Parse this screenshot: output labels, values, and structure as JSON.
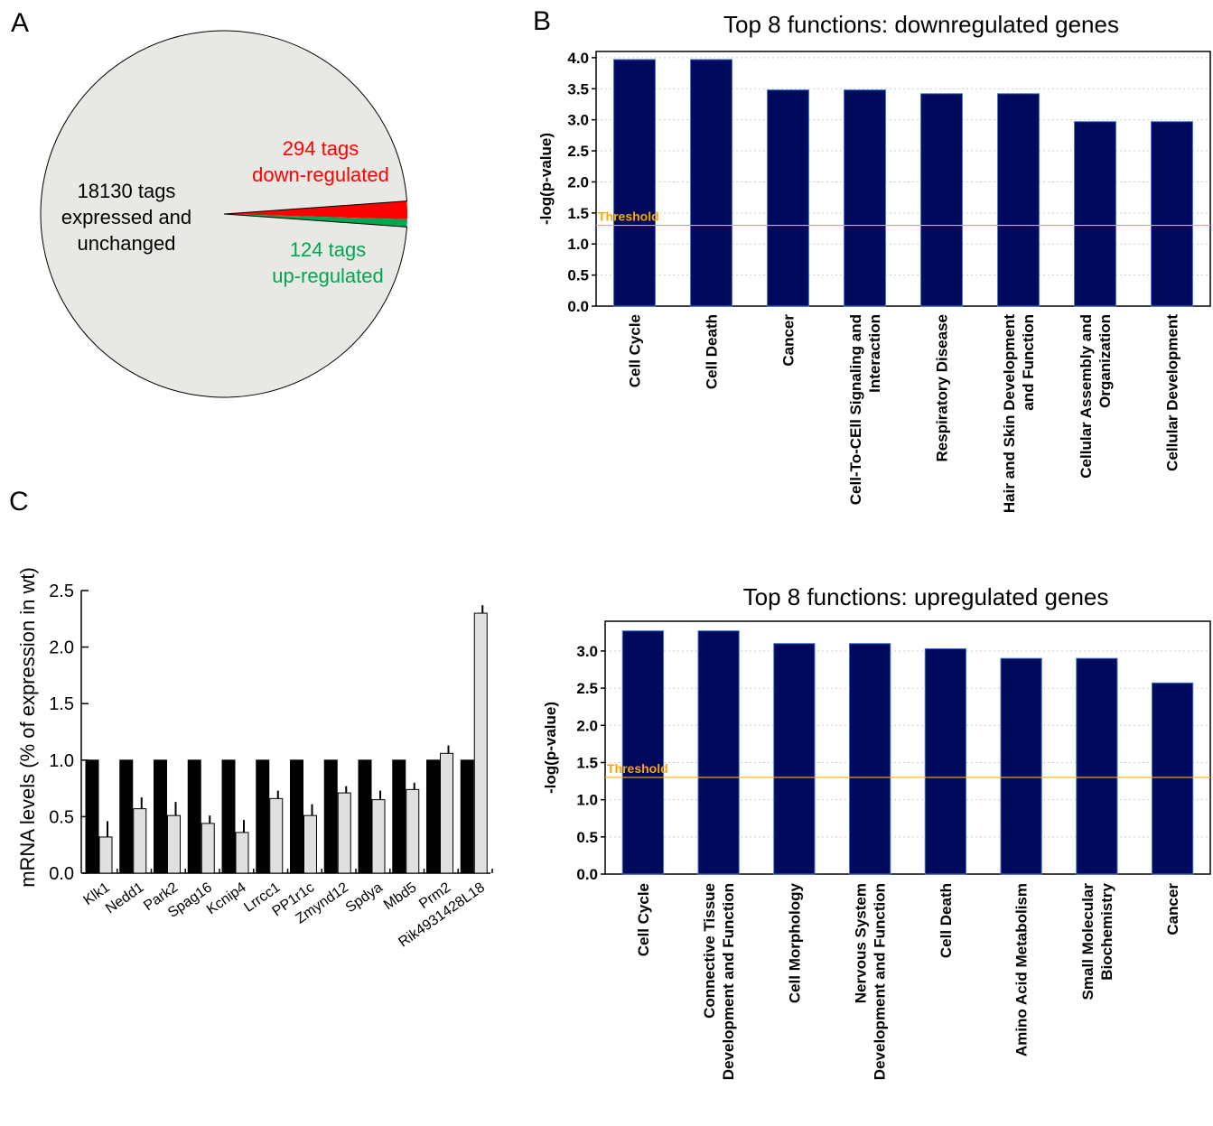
{
  "panel_labels": {
    "a": "A",
    "b": "B",
    "c": "C"
  },
  "chart_data": [
    {
      "panel": "A",
      "type": "pie",
      "labels": [
        "18130 tags expressed and unchanged",
        "294 tags down-regulated",
        "124 tags up-regulated"
      ],
      "values": [
        18130,
        294,
        124
      ],
      "colors": [
        "#E8E8E4",
        "#FF0000",
        "#00A651"
      ],
      "text_colors": [
        "#000000",
        "#FF0000",
        "#00A651"
      ],
      "label_lines": [
        [
          "18130 tags",
          "expressed and",
          "unchanged"
        ],
        [
          "294 tags",
          "down-regulated"
        ],
        [
          "124 tags",
          "up-regulated"
        ]
      ]
    },
    {
      "panel": "B",
      "type": "bar",
      "title": "Top 8 functions: downregulated genes",
      "ylabel": "-log(p-value)",
      "ylim": [
        0,
        4.1
      ],
      "yticks": [
        "0.0",
        "0.5",
        "1.0",
        "1.5",
        "2.0",
        "2.5",
        "3.0",
        "3.5",
        "4.0"
      ],
      "threshold_label": "Threshold",
      "threshold": 1.3,
      "bar_color": "#000A5C",
      "categories": [
        [
          "Cell Cycle"
        ],
        [
          "Cell Death"
        ],
        [
          "Cancer"
        ],
        [
          "Cell-To-CEll Signaling and",
          "Interaction"
        ],
        [
          "Respiratory Disease"
        ],
        [
          "Hair and Skin Development",
          "and Function"
        ],
        [
          "Cellular Assembly and",
          "Organization"
        ],
        [
          "Cellular Development"
        ]
      ],
      "values": [
        3.97,
        3.97,
        3.48,
        3.48,
        3.42,
        3.42,
        2.97,
        2.97
      ],
      "grid": "horizontal dotted"
    },
    {
      "panel": "B",
      "type": "bar",
      "title": "Top 8 functions: upregulated genes",
      "ylabel": "-log(p-value)",
      "ylim": [
        0,
        3.4
      ],
      "yticks": [
        "0.0",
        "0.5",
        "1.0",
        "1.5",
        "2.0",
        "2.5",
        "3.0"
      ],
      "threshold_label": "Threshold",
      "threshold": 1.3,
      "bar_color": "#000A5C",
      "categories": [
        [
          "Cell Cycle"
        ],
        [
          "Connective Tissue",
          "Development and Function"
        ],
        [
          "Cell Morphology"
        ],
        [
          "Nervous System",
          "Development and Function"
        ],
        [
          "Cell Death"
        ],
        [
          "Amino Acid Metabolism"
        ],
        [
          "Small Molecular",
          "Biochemistry"
        ],
        [
          "Cancer"
        ]
      ],
      "values": [
        3.27,
        3.27,
        3.1,
        3.1,
        3.03,
        2.9,
        2.9,
        2.57
      ],
      "grid": "horizontal dotted"
    },
    {
      "panel": "C",
      "type": "bar",
      "ylabel": "mRNA levels (% of expression in wt)",
      "ylim": [
        0,
        2.5
      ],
      "yticks": [
        "0.0",
        "0.5",
        "1.0",
        "1.5",
        "2.0",
        "2.5"
      ],
      "categories": [
        "Klk1",
        "Nedd1",
        "Park2",
        "Spag16",
        "Kcnip4",
        "Lrrcc1",
        "PP1r1c",
        "Zmynd12",
        "Spdya",
        "Mbd5",
        "Prm2",
        "Rik4931428L18"
      ],
      "series": [
        {
          "values": [
            1,
            1,
            1,
            1,
            1,
            1,
            1,
            1,
            1,
            1,
            1,
            1
          ],
          "color": "#000000"
        },
        {
          "values": [
            0.32,
            0.57,
            0.51,
            0.44,
            0.36,
            0.66,
            0.51,
            0.71,
            0.65,
            0.74,
            1.06,
            2.3
          ],
          "errors": [
            0.14,
            0.1,
            0.12,
            0.07,
            0.11,
            0.07,
            0.1,
            0.06,
            0.08,
            0.06,
            0.07,
            0.07
          ],
          "color": "#E0E0E0"
        }
      ]
    }
  ]
}
